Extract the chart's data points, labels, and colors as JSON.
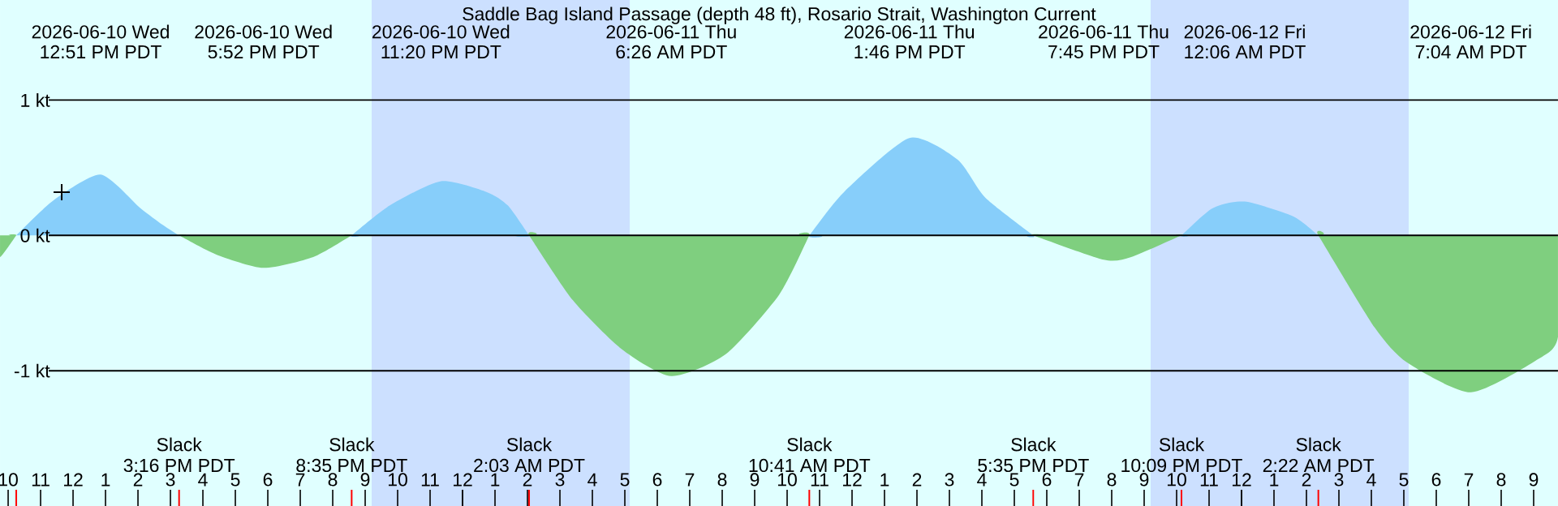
{
  "chart_data": {
    "type": "area",
    "title": "Saddle Bag Island Passage (depth 48 ft), Rosario Strait, Washington Current",
    "x": [
      "2026-06-10T09:45",
      "2026-06-10T10:15",
      "2026-06-10T11:24",
      "2026-06-10T12:51",
      "2026-06-10T14:05",
      "2026-06-10T14:45",
      "2026-06-10T15:16",
      "2026-06-10T16:24",
      "2026-06-10T17:52",
      "2026-06-10T19:24",
      "2026-06-10T20:35",
      "2026-06-10T21:45",
      "2026-06-10T23:20",
      "2026-06-11T00:45",
      "2026-06-11T01:24",
      "2026-06-11T02:03",
      "2026-06-11T03:24",
      "2026-06-11T04:54",
      "2026-06-11T06:26",
      "2026-06-11T08:06",
      "2026-06-11T09:45",
      "2026-06-11T10:41",
      "2026-06-11T11:45",
      "2026-06-11T13:46",
      "2026-06-11T15:15",
      "2026-06-11T16:06",
      "2026-06-11T17:35",
      "2026-06-11T19:45",
      "2026-06-11T20:36",
      "2026-06-11T22:09",
      "2026-06-11T23:06",
      "2026-06-12T00:06",
      "2026-06-12T01:36",
      "2026-06-12T02:22",
      "2026-06-12T04:06",
      "2026-06-12T05:06",
      "2026-06-12T07:04",
      "2026-06-12T09:06",
      "2026-06-12T09:45"
    ],
    "series": [
      {
        "color": "#87cefa",
        "values": [
          null,
          0,
          0.26,
          0.45,
          0.2,
          0.08,
          0,
          null,
          null,
          null,
          0,
          0.22,
          0.4,
          0.32,
          0.22,
          0,
          null,
          null,
          null,
          null,
          null,
          0,
          0.32,
          0.72,
          0.56,
          0.28,
          0,
          null,
          null,
          0,
          0.2,
          0.25,
          0.14,
          0,
          null,
          null,
          null,
          null,
          null
        ]
      },
      {
        "color": "#7fcf7f",
        "values": [
          -0.16,
          0,
          null,
          null,
          null,
          null,
          0,
          -0.14,
          -0.24,
          -0.16,
          0,
          null,
          null,
          null,
          null,
          0,
          -0.48,
          -0.84,
          -1.04,
          -0.88,
          -0.44,
          0,
          null,
          null,
          null,
          null,
          0,
          -0.18,
          -0.16,
          0,
          null,
          null,
          null,
          0,
          -0.68,
          -0.94,
          -1.16,
          -0.92,
          -0.75
        ]
      },
      {
        "type": "scatter",
        "marker": "cross",
        "color": "#000000",
        "x": [
          "2026-06-10T11:39"
        ],
        "values": [
          0.32
        ]
      }
    ],
    "xlim": [
      "2026-06-10T09:45",
      "2026-06-12T09:45"
    ],
    "ylim": [
      -2.0,
      1.74
    ],
    "yticks": [
      {
        "value": -1,
        "label": "-1 kt"
      },
      {
        "value": 0,
        "label": "0 kt"
      },
      {
        "value": 1,
        "label": "1 kt"
      }
    ],
    "xticks": [
      {
        "value": "2026-06-10T10:00",
        "label": "10"
      },
      {
        "value": "2026-06-10T11:00",
        "label": "11"
      },
      {
        "value": "2026-06-10T12:00",
        "label": "12"
      },
      {
        "value": "2026-06-10T13:00",
        "label": "1"
      },
      {
        "value": "2026-06-10T14:00",
        "label": "2"
      },
      {
        "value": "2026-06-10T15:00",
        "label": "3"
      },
      {
        "value": "2026-06-10T16:00",
        "label": "4"
      },
      {
        "value": "2026-06-10T17:00",
        "label": "5"
      },
      {
        "value": "2026-06-10T18:00",
        "label": "6"
      },
      {
        "value": "2026-06-10T19:00",
        "label": "7"
      },
      {
        "value": "2026-06-10T20:00",
        "label": "8"
      },
      {
        "value": "2026-06-10T21:00",
        "label": "9"
      },
      {
        "value": "2026-06-10T22:00",
        "label": "10"
      },
      {
        "value": "2026-06-10T23:00",
        "label": "11"
      },
      {
        "value": "2026-06-11T00:00",
        "label": "12"
      },
      {
        "value": "2026-06-11T01:00",
        "label": "1"
      },
      {
        "value": "2026-06-11T02:00",
        "label": "2"
      },
      {
        "value": "2026-06-11T03:00",
        "label": "3"
      },
      {
        "value": "2026-06-11T04:00",
        "label": "4"
      },
      {
        "value": "2026-06-11T05:00",
        "label": "5"
      },
      {
        "value": "2026-06-11T06:00",
        "label": "6"
      },
      {
        "value": "2026-06-11T07:00",
        "label": "7"
      },
      {
        "value": "2026-06-11T08:00",
        "label": "8"
      },
      {
        "value": "2026-06-11T09:00",
        "label": "9"
      },
      {
        "value": "2026-06-11T10:00",
        "label": "10"
      },
      {
        "value": "2026-06-11T11:00",
        "label": "11"
      },
      {
        "value": "2026-06-11T12:00",
        "label": "12"
      },
      {
        "value": "2026-06-11T13:00",
        "label": "1"
      },
      {
        "value": "2026-06-11T14:00",
        "label": "2"
      },
      {
        "value": "2026-06-11T15:00",
        "label": "3"
      },
      {
        "value": "2026-06-11T16:00",
        "label": "4"
      },
      {
        "value": "2026-06-11T17:00",
        "label": "5"
      },
      {
        "value": "2026-06-11T18:00",
        "label": "6"
      },
      {
        "value": "2026-06-11T19:00",
        "label": "7"
      },
      {
        "value": "2026-06-11T20:00",
        "label": "8"
      },
      {
        "value": "2026-06-11T21:00",
        "label": "9"
      },
      {
        "value": "2026-06-11T22:00",
        "label": "10"
      },
      {
        "value": "2026-06-11T23:00",
        "label": "11"
      },
      {
        "value": "2026-06-12T00:00",
        "label": "12"
      },
      {
        "value": "2026-06-12T01:00",
        "label": "1"
      },
      {
        "value": "2026-06-12T02:00",
        "label": "2"
      },
      {
        "value": "2026-06-12T03:00",
        "label": "3"
      },
      {
        "value": "2026-06-12T04:00",
        "label": "4"
      },
      {
        "value": "2026-06-12T05:00",
        "label": "5"
      },
      {
        "value": "2026-06-12T06:00",
        "label": "6"
      },
      {
        "value": "2026-06-12T07:00",
        "label": "7"
      },
      {
        "value": "2026-06-12T08:00",
        "label": "8"
      },
      {
        "value": "2026-06-12T09:00",
        "label": "9"
      }
    ],
    "grid": "y",
    "bands": [
      {
        "axis": "x",
        "from": "2026-06-10T21:12",
        "to": "2026-06-11T05:09",
        "color": "#cce0ff"
      },
      {
        "axis": "x",
        "from": "2026-06-11T21:12",
        "to": "2026-06-12T05:09",
        "color": "#cce0ff"
      }
    ],
    "annotations": [
      "2026-06-10 Wed",
      "12:51 PM PDT",
      "2026-06-10 Wed",
      "5:52 PM PDT",
      "2026-06-10 Wed",
      "11:20 PM PDT",
      "2026-06-11 Thu",
      "6:26 AM PDT",
      "2026-06-11 Thu",
      "1:46 PM PDT",
      "2026-06-11 Thu",
      "7:45 PM PDT",
      "2026-06-12 Fri",
      "12:06 AM PDT",
      "2026-06-12 Fri",
      "7:04 AM PDT",
      "Slack",
      "3:16 PM PDT",
      "Slack",
      "8:35 PM PDT",
      "Slack",
      "2:03 AM PDT",
      "Slack",
      "10:41 AM PDT",
      "Slack",
      "5:35 PM PDT",
      "Slack",
      "10:09 PM PDT",
      "Slack",
      "2:22 AM PDT"
    ]
  }
}
